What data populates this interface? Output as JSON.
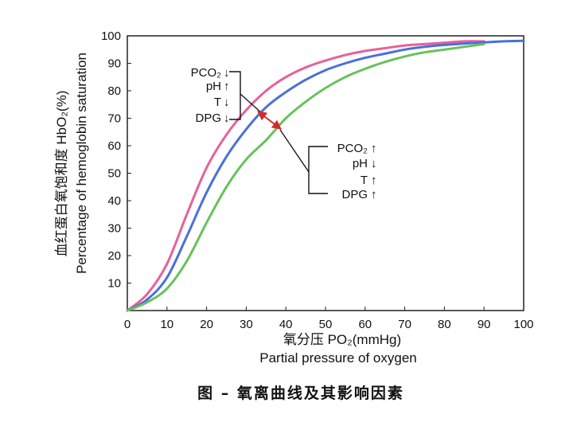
{
  "chart_data": {
    "type": "line",
    "title": "",
    "xlabel_cn": "氧分压  PO₂(mmHg)",
    "xlabel": "Partial pressure of oxygen",
    "ylabel_cn": "血红蛋白氧饱和度  HbO₂(%)",
    "ylabel": "Percentage of hemoglobin saturation",
    "xlim": [
      0,
      100
    ],
    "ylim": [
      0,
      100
    ],
    "xticks": [
      0,
      10,
      20,
      30,
      40,
      50,
      60,
      70,
      80,
      90,
      100
    ],
    "yticks": [
      10,
      20,
      30,
      40,
      50,
      60,
      70,
      80,
      90,
      100
    ],
    "series": [
      {
        "color": "#e8609a",
        "x": [
          0,
          5,
          10,
          15,
          20,
          25,
          30,
          35,
          40,
          45,
          50,
          55,
          60,
          65,
          70,
          75,
          80,
          85,
          90
        ],
        "y": [
          0,
          6,
          17,
          35,
          52,
          64,
          73,
          80,
          85,
          88.5,
          91,
          93,
          94.5,
          95.5,
          96.5,
          97,
          97.5,
          98,
          98
        ]
      },
      {
        "color": "#4a6fd8",
        "x": [
          0,
          5,
          10,
          15,
          20,
          25,
          30,
          35,
          40,
          45,
          50,
          55,
          60,
          65,
          70,
          75,
          80,
          85,
          90,
          95,
          100
        ],
        "y": [
          0,
          4,
          12,
          27,
          43,
          56,
          66,
          74,
          79.5,
          84,
          87.5,
          90,
          92,
          93.5,
          95,
          96,
          96.7,
          97.2,
          97.6,
          98,
          98.2
        ]
      },
      {
        "color": "#66c25a",
        "x": [
          0,
          5,
          10,
          15,
          20,
          25,
          30,
          35,
          40,
          45,
          50,
          55,
          60,
          65,
          70,
          75,
          80,
          85,
          90
        ],
        "y": [
          0,
          3,
          8,
          18,
          32,
          45,
          55,
          62,
          70,
          76,
          81,
          85,
          88,
          90.5,
          92.5,
          94,
          95,
          96,
          97
        ]
      }
    ],
    "annotations": {
      "left_shift": [
        {
          "label": "PCO₂",
          "arrow": "↓"
        },
        {
          "label": "pH",
          "arrow": "↑"
        },
        {
          "label": "T",
          "arrow": "↓"
        },
        {
          "label": "DPG",
          "arrow": "↓"
        }
      ],
      "right_shift": [
        {
          "label": "PCO₂",
          "arrow": "↑"
        },
        {
          "label": "pH",
          "arrow": "↓"
        },
        {
          "label": "T",
          "arrow": "↑"
        },
        {
          "label": "DPG",
          "arrow": "↑"
        }
      ],
      "shift_arrow_color": "#d42a2a"
    },
    "caption": "图 – 氧离曲线及其影响因素"
  }
}
